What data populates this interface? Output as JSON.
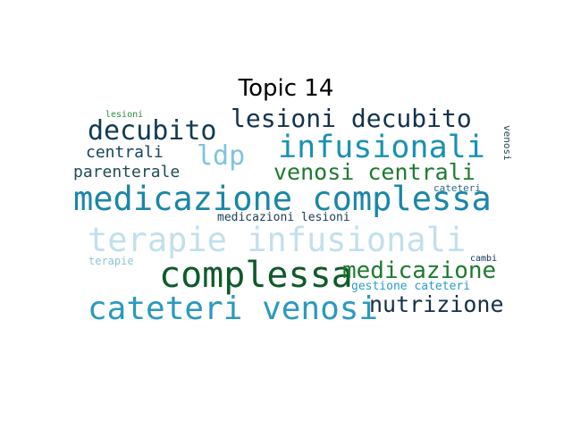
{
  "title": "Topic 14",
  "words": [
    {
      "text": "lesioni",
      "color": "#2a8a3e"
    },
    {
      "text": "lesioni decubito",
      "color": "#14324f"
    },
    {
      "text": "decubito",
      "color": "#123a52"
    },
    {
      "text": "infusionali",
      "color": "#1a90b5"
    },
    {
      "text": "venosi",
      "color": "#2a4a4e"
    },
    {
      "text": "centrali",
      "color": "#18435a"
    },
    {
      "text": "ldp",
      "color": "#7fc4dc"
    },
    {
      "text": "parenterale",
      "color": "#1f4d52"
    },
    {
      "text": "venosi centrali",
      "color": "#1f7a2e"
    },
    {
      "text": "cateteri",
      "color": "#2b6a8a"
    },
    {
      "text": "medicazione complessa",
      "color": "#1a86a8"
    },
    {
      "text": "medicazioni lesioni",
      "color": "#1b3e52"
    },
    {
      "text": "terapie infusionali",
      "color": "#c2e0ec"
    },
    {
      "text": "terapie",
      "color": "#8fc6db"
    },
    {
      "text": "cambi",
      "color": "#13315e"
    },
    {
      "text": "complessa",
      "color": "#0e5a2a"
    },
    {
      "text": "medicazione",
      "color": "#1e7a2e"
    },
    {
      "text": "gestione cateteri",
      "color": "#2a9bc8"
    },
    {
      "text": "cateteri venosi",
      "color": "#2b99c0"
    },
    {
      "text": "nutrizione",
      "color": "#172f4a"
    }
  ]
}
